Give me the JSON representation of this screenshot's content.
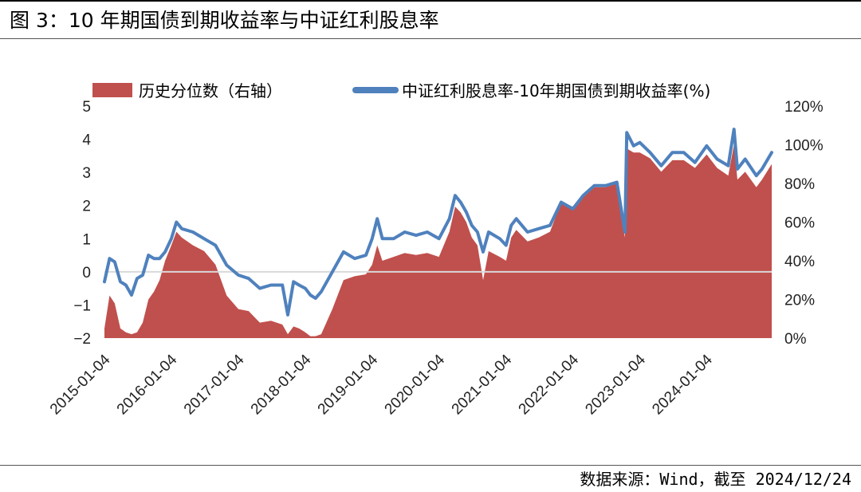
{
  "title": "图 3：10 年期国债到期收益率与中证红利股息率",
  "source": "数据来源：Wind，截至 2024/12/24",
  "chart_data": {
    "type": "line+area",
    "legend": [
      {
        "name": "历史分位数（右轴）",
        "color": "#C0504D",
        "kind": "area"
      },
      {
        "name": "中证红利股息率-10年期国债到期收益率(%)",
        "color": "#4F81BD",
        "kind": "line"
      }
    ],
    "legend_position": "top",
    "y_left": {
      "min": -2,
      "max": 5,
      "ticks": [
        "−2",
        "−1",
        "0",
        "1",
        "2",
        "3",
        "4",
        "5"
      ]
    },
    "y_right": {
      "min": 0,
      "max": 120,
      "ticks": [
        "0%",
        "20%",
        "40%",
        "60%",
        "80%",
        "100%",
        "120%"
      ]
    },
    "x_ticks": [
      "2015-01-04",
      "2016-01-04",
      "2017-01-04",
      "2018-01-04",
      "2019-01-04",
      "2020-01-04",
      "2021-01-04",
      "2022-01-04",
      "2023-01-04",
      "2024-01-04"
    ],
    "x_range": [
      "2015-01-04",
      "2024-12-24"
    ],
    "series": [
      {
        "name": "中证红利股息率-10年期国债到期收益率(%)",
        "axis": "left",
        "points": [
          [
            "2015-01-04",
            -0.3
          ],
          [
            "2015-02-01",
            0.4
          ],
          [
            "2015-03-01",
            0.3
          ],
          [
            "2015-04-01",
            -0.3
          ],
          [
            "2015-05-01",
            -0.4
          ],
          [
            "2015-06-01",
            -0.7
          ],
          [
            "2015-07-01",
            -0.2
          ],
          [
            "2015-08-01",
            -0.1
          ],
          [
            "2015-09-01",
            0.5
          ],
          [
            "2015-10-01",
            0.4
          ],
          [
            "2015-11-01",
            0.4
          ],
          [
            "2015-12-01",
            0.6
          ],
          [
            "2016-01-04",
            1.0
          ],
          [
            "2016-02-01",
            1.5
          ],
          [
            "2016-03-01",
            1.3
          ],
          [
            "2016-05-01",
            1.2
          ],
          [
            "2016-07-01",
            1.0
          ],
          [
            "2016-09-01",
            0.8
          ],
          [
            "2016-11-01",
            0.2
          ],
          [
            "2017-01-04",
            -0.1
          ],
          [
            "2017-03-01",
            -0.2
          ],
          [
            "2017-05-01",
            -0.5
          ],
          [
            "2017-07-01",
            -0.4
          ],
          [
            "2017-09-01",
            -0.4
          ],
          [
            "2017-10-01",
            -1.3
          ],
          [
            "2017-11-01",
            -0.3
          ],
          [
            "2017-12-01",
            -0.4
          ],
          [
            "2018-01-04",
            -0.5
          ],
          [
            "2018-02-01",
            -0.7
          ],
          [
            "2018-03-01",
            -0.8
          ],
          [
            "2018-04-01",
            -0.6
          ],
          [
            "2018-06-01",
            0.0
          ],
          [
            "2018-08-01",
            0.6
          ],
          [
            "2018-10-01",
            0.4
          ],
          [
            "2018-12-01",
            0.5
          ],
          [
            "2019-01-04",
            1.0
          ],
          [
            "2019-02-01",
            1.6
          ],
          [
            "2019-03-01",
            1.0
          ],
          [
            "2019-05-01",
            1.0
          ],
          [
            "2019-07-01",
            1.2
          ],
          [
            "2019-09-01",
            1.1
          ],
          [
            "2019-11-01",
            1.2
          ],
          [
            "2020-01-04",
            1.0
          ],
          [
            "2020-03-01",
            1.6
          ],
          [
            "2020-04-01",
            2.3
          ],
          [
            "2020-05-01",
            2.1
          ],
          [
            "2020-06-01",
            1.8
          ],
          [
            "2020-07-01",
            1.4
          ],
          [
            "2020-08-01",
            1.2
          ],
          [
            "2020-09-01",
            0.6
          ],
          [
            "2020-10-01",
            1.2
          ],
          [
            "2020-12-01",
            1.0
          ],
          [
            "2021-01-04",
            0.8
          ],
          [
            "2021-02-01",
            1.4
          ],
          [
            "2021-03-01",
            1.6
          ],
          [
            "2021-05-01",
            1.2
          ],
          [
            "2021-07-01",
            1.3
          ],
          [
            "2021-09-01",
            1.4
          ],
          [
            "2021-11-01",
            2.1
          ],
          [
            "2022-01-04",
            1.9
          ],
          [
            "2022-03-01",
            2.3
          ],
          [
            "2022-05-01",
            2.6
          ],
          [
            "2022-07-01",
            2.6
          ],
          [
            "2022-09-01",
            2.7
          ],
          [
            "2022-10-15",
            1.2
          ],
          [
            "2022-10-25",
            4.2
          ],
          [
            "2022-12-01",
            3.8
          ],
          [
            "2023-01-04",
            3.9
          ],
          [
            "2023-03-01",
            3.6
          ],
          [
            "2023-05-01",
            3.2
          ],
          [
            "2023-07-01",
            3.6
          ],
          [
            "2023-09-01",
            3.6
          ],
          [
            "2023-11-01",
            3.3
          ],
          [
            "2024-01-04",
            3.8
          ],
          [
            "2024-03-01",
            3.4
          ],
          [
            "2024-05-01",
            3.2
          ],
          [
            "2024-06-01",
            4.3
          ],
          [
            "2024-06-20",
            3.1
          ],
          [
            "2024-08-01",
            3.4
          ],
          [
            "2024-10-01",
            2.9
          ],
          [
            "2024-11-01",
            3.1
          ],
          [
            "2024-12-24",
            3.6
          ]
        ]
      },
      {
        "name": "历史分位数（右轴）",
        "axis": "right",
        "points": [
          [
            "2015-01-04",
            5
          ],
          [
            "2015-02-01",
            22
          ],
          [
            "2015-03-01",
            18
          ],
          [
            "2015-04-01",
            5
          ],
          [
            "2015-05-01",
            3
          ],
          [
            "2015-06-01",
            2
          ],
          [
            "2015-07-01",
            3
          ],
          [
            "2015-08-01",
            8
          ],
          [
            "2015-09-01",
            20
          ],
          [
            "2015-10-01",
            24
          ],
          [
            "2015-11-01",
            30
          ],
          [
            "2015-12-01",
            40
          ],
          [
            "2016-01-04",
            48
          ],
          [
            "2016-02-01",
            55
          ],
          [
            "2016-03-01",
            52
          ],
          [
            "2016-05-01",
            48
          ],
          [
            "2016-07-01",
            45
          ],
          [
            "2016-09-01",
            38
          ],
          [
            "2016-11-01",
            22
          ],
          [
            "2017-01-04",
            15
          ],
          [
            "2017-03-01",
            14
          ],
          [
            "2017-05-01",
            8
          ],
          [
            "2017-07-01",
            9
          ],
          [
            "2017-09-01",
            7
          ],
          [
            "2017-10-01",
            2
          ],
          [
            "2017-11-01",
            6
          ],
          [
            "2017-12-01",
            5
          ],
          [
            "2018-01-04",
            3
          ],
          [
            "2018-02-01",
            1
          ],
          [
            "2018-03-01",
            1
          ],
          [
            "2018-04-01",
            2
          ],
          [
            "2018-06-01",
            15
          ],
          [
            "2018-08-01",
            30
          ],
          [
            "2018-10-01",
            32
          ],
          [
            "2018-12-01",
            33
          ],
          [
            "2019-01-04",
            38
          ],
          [
            "2019-02-01",
            48
          ],
          [
            "2019-03-01",
            40
          ],
          [
            "2019-05-01",
            42
          ],
          [
            "2019-07-01",
            44
          ],
          [
            "2019-09-01",
            43
          ],
          [
            "2019-11-01",
            44
          ],
          [
            "2020-01-04",
            42
          ],
          [
            "2020-03-01",
            55
          ],
          [
            "2020-04-01",
            68
          ],
          [
            "2020-05-01",
            65
          ],
          [
            "2020-06-01",
            60
          ],
          [
            "2020-07-01",
            52
          ],
          [
            "2020-08-01",
            48
          ],
          [
            "2020-09-01",
            30
          ],
          [
            "2020-10-01",
            45
          ],
          [
            "2020-12-01",
            42
          ],
          [
            "2021-01-04",
            40
          ],
          [
            "2021-02-01",
            52
          ],
          [
            "2021-03-01",
            56
          ],
          [
            "2021-05-01",
            50
          ],
          [
            "2021-07-01",
            52
          ],
          [
            "2021-09-01",
            55
          ],
          [
            "2021-11-01",
            70
          ],
          [
            "2022-01-04",
            68
          ],
          [
            "2022-03-01",
            74
          ],
          [
            "2022-05-01",
            78
          ],
          [
            "2022-07-01",
            78
          ],
          [
            "2022-09-01",
            80
          ],
          [
            "2022-10-15",
            52
          ],
          [
            "2022-10-25",
            98
          ],
          [
            "2022-12-01",
            96
          ],
          [
            "2023-01-04",
            96
          ],
          [
            "2023-03-01",
            93
          ],
          [
            "2023-05-01",
            86
          ],
          [
            "2023-07-01",
            92
          ],
          [
            "2023-09-01",
            92
          ],
          [
            "2023-11-01",
            88
          ],
          [
            "2024-01-04",
            95
          ],
          [
            "2024-03-01",
            88
          ],
          [
            "2024-05-01",
            84
          ],
          [
            "2024-06-01",
            100
          ],
          [
            "2024-06-20",
            82
          ],
          [
            "2024-08-01",
            86
          ],
          [
            "2024-10-01",
            78
          ],
          [
            "2024-11-01",
            82
          ],
          [
            "2024-12-24",
            90
          ]
        ]
      }
    ]
  }
}
